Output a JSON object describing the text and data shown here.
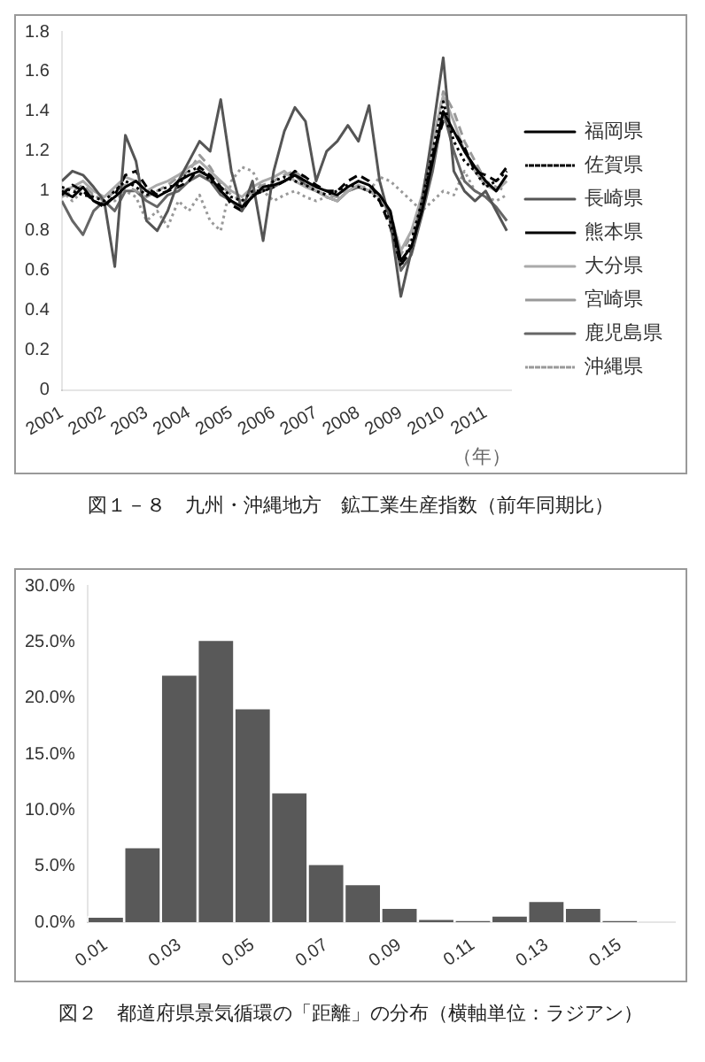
{
  "chart_data": [
    {
      "type": "line",
      "title": "図１－８　九州・沖縄地方　鉱工業生産指数（前年同期比）",
      "xlabel": "（年）",
      "legend": "right",
      "grid": false,
      "marker": "none",
      "x": [
        2001,
        2001.25,
        2001.5,
        2001.75,
        2002,
        2002.25,
        2002.5,
        2002.75,
        2003,
        2003.25,
        2003.5,
        2003.75,
        2004,
        2004.25,
        2004.5,
        2004.75,
        2005,
        2005.25,
        2005.5,
        2005.75,
        2006,
        2006.25,
        2006.5,
        2006.75,
        2007,
        2007.25,
        2007.5,
        2007.75,
        2008,
        2008.25,
        2008.5,
        2008.75,
        2009,
        2009.25,
        2009.5,
        2009.75,
        2010,
        2010.25,
        2010.5,
        2010.75,
        2011,
        2011.25,
        2011.5
      ],
      "xlim": [
        2001,
        2011.6
      ],
      "xticks": [
        2001,
        2002,
        2003,
        2004,
        2005,
        2006,
        2007,
        2008,
        2009,
        2010,
        2011
      ],
      "ylim": [
        0,
        1.8
      ],
      "yticks": [
        0,
        0.2,
        0.4,
        0.6,
        0.8,
        1,
        1.2,
        1.4,
        1.6,
        1.8
      ],
      "series": [
        {
          "name": "福岡県",
          "color": "#000000",
          "line_style": "solid",
          "values": [
            1.0,
            0.97,
            1.02,
            0.95,
            0.93,
            0.97,
            1.02,
            1.05,
            1.0,
            0.97,
            1.0,
            1.05,
            1.08,
            1.1,
            1.07,
            1.0,
            0.95,
            0.92,
            0.97,
            1.02,
            1.03,
            1.05,
            1.08,
            1.05,
            1.02,
            1.0,
            0.98,
            1.02,
            1.05,
            1.03,
            0.98,
            0.9,
            0.65,
            0.72,
            0.9,
            1.15,
            1.4,
            1.3,
            1.2,
            1.12,
            1.05,
            1.0,
            1.08
          ]
        },
        {
          "name": "佐賀県",
          "color": "#000000",
          "line_style": "dotted",
          "values": [
            1.02,
            1.0,
            0.98,
            0.97,
            0.95,
            1.0,
            1.05,
            1.02,
            0.98,
            1.0,
            1.02,
            1.03,
            1.1,
            1.12,
            1.05,
            1.02,
            0.97,
            0.95,
            1.0,
            1.0,
            1.05,
            1.07,
            1.05,
            1.03,
            1.0,
            0.98,
            1.0,
            1.03,
            1.02,
            1.0,
            0.95,
            0.85,
            0.62,
            0.75,
            0.95,
            1.2,
            1.45,
            1.25,
            1.15,
            1.1,
            1.02,
            1.05,
            1.1
          ]
        },
        {
          "name": "長崎県",
          "color": "#555555",
          "line_style": "solid",
          "values": [
            1.05,
            1.1,
            1.08,
            1.02,
            0.95,
            0.62,
            1.28,
            1.15,
            0.85,
            0.8,
            0.9,
            1.05,
            1.15,
            1.25,
            1.2,
            1.46,
            1.1,
            0.9,
            1.05,
            0.75,
            1.1,
            1.3,
            1.42,
            1.35,
            1.05,
            1.2,
            1.25,
            1.33,
            1.25,
            1.43,
            1.05,
            0.85,
            0.47,
            0.7,
            0.95,
            1.3,
            1.67,
            1.1,
            1.0,
            0.95,
            1.0,
            0.9,
            0.8
          ]
        },
        {
          "name": "熊本県",
          "color": "#000000",
          "line_style": "dashed",
          "values": [
            0.98,
            1.03,
            1.0,
            0.95,
            0.92,
            0.98,
            1.08,
            1.1,
            1.02,
            0.98,
            1.0,
            1.02,
            1.05,
            1.12,
            1.08,
            1.02,
            0.93,
            0.9,
            0.98,
            1.0,
            1.02,
            1.05,
            1.1,
            1.07,
            1.03,
            1.0,
            1.0,
            1.05,
            1.08,
            1.05,
            0.95,
            0.82,
            0.63,
            0.7,
            0.92,
            1.18,
            1.35,
            1.3,
            1.22,
            1.1,
            1.08,
            1.05,
            1.12
          ]
        },
        {
          "name": "大分県",
          "color": "#aaaaaa",
          "line_style": "solid",
          "values": [
            1.0,
            1.02,
            1.05,
            1.0,
            0.97,
            1.02,
            1.07,
            1.05,
            1.0,
            1.03,
            1.05,
            1.08,
            1.12,
            1.15,
            1.1,
            1.05,
            1.0,
            0.97,
            1.02,
            1.05,
            1.07,
            1.1,
            1.05,
            1.02,
            1.0,
            0.97,
            0.95,
            1.0,
            1.03,
            1.0,
            0.97,
            0.88,
            0.7,
            0.8,
            0.98,
            1.25,
            1.48,
            1.35,
            1.2,
            1.1,
            1.03,
            1.0,
            1.05
          ]
        },
        {
          "name": "宮崎県",
          "color": "#999999",
          "line_style": "dashed",
          "values": [
            0.97,
            1.0,
            1.03,
            0.98,
            0.95,
            1.0,
            1.03,
            1.0,
            0.97,
            1.0,
            1.03,
            1.07,
            1.1,
            1.18,
            1.12,
            1.03,
            0.98,
            0.95,
            1.0,
            1.03,
            1.05,
            1.08,
            1.1,
            1.05,
            1.0,
            0.98,
            0.97,
            1.0,
            1.02,
            1.02,
            0.97,
            0.9,
            0.68,
            0.78,
            0.97,
            1.22,
            1.5,
            1.4,
            1.25,
            1.15,
            1.05,
            1.02,
            1.0
          ]
        },
        {
          "name": "鹿児島県",
          "color": "#666666",
          "line_style": "solid",
          "values": [
            0.95,
            0.85,
            0.78,
            0.9,
            0.95,
            0.9,
            1.0,
            1.0,
            0.95,
            0.92,
            0.98,
            1.0,
            1.05,
            1.08,
            1.05,
            0.98,
            0.95,
            0.9,
            0.98,
            1.0,
            1.02,
            1.05,
            1.08,
            1.03,
            1.0,
            0.97,
            0.95,
            1.0,
            1.02,
            1.0,
            0.97,
            0.88,
            0.6,
            0.68,
            0.88,
            1.1,
            1.4,
            1.2,
            1.05,
            1.0,
            0.97,
            0.92,
            0.85
          ]
        },
        {
          "name": "沖縄県",
          "color": "#999999",
          "line_style": "dotted",
          "values": [
            1.0,
            0.95,
            1.0,
            0.98,
            0.95,
            0.95,
            1.0,
            0.97,
            0.85,
            0.9,
            0.82,
            0.95,
            0.9,
            0.98,
            0.85,
            0.8,
            1.05,
            1.12,
            1.1,
            1.0,
            0.95,
            0.98,
            1.0,
            0.97,
            0.95,
            0.97,
            0.95,
            1.0,
            1.02,
            1.0,
            1.07,
            1.05,
            1.0,
            0.95,
            0.9,
            0.95,
            1.0,
            0.98,
            1.1,
            1.0,
            0.97,
            0.95,
            0.98
          ]
        }
      ]
    },
    {
      "type": "bar",
      "title": "図２　都道府県景気循環の「距離」の分布（横軸単位：ラジアン）",
      "legend": false,
      "grid": false,
      "categories": [
        "0.01",
        null,
        "0.03",
        null,
        "0.05",
        null,
        "0.07",
        null,
        "0.09",
        null,
        "0.11",
        null,
        "0.13",
        null,
        "0.15",
        null
      ],
      "values": [
        0.5,
        6.7,
        22.1,
        25.2,
        19.1,
        11.6,
        5.2,
        3.4,
        1.3,
        0.3,
        0.1,
        0.6,
        1.9,
        1.3,
        0.1,
        0
      ],
      "color": "#595959",
      "ylim": [
        0,
        30
      ],
      "yticks": [
        {
          "value": 0,
          "label": "0.0%"
        },
        {
          "value": 5,
          "label": "5.0%"
        },
        {
          "value": 10,
          "label": "10.0%"
        },
        {
          "value": 15,
          "label": "15.0%"
        },
        {
          "value": 20,
          "label": "20.0%"
        },
        {
          "value": 25,
          "label": "25.0%"
        },
        {
          "value": 30,
          "label": "30.0%"
        }
      ]
    }
  ]
}
